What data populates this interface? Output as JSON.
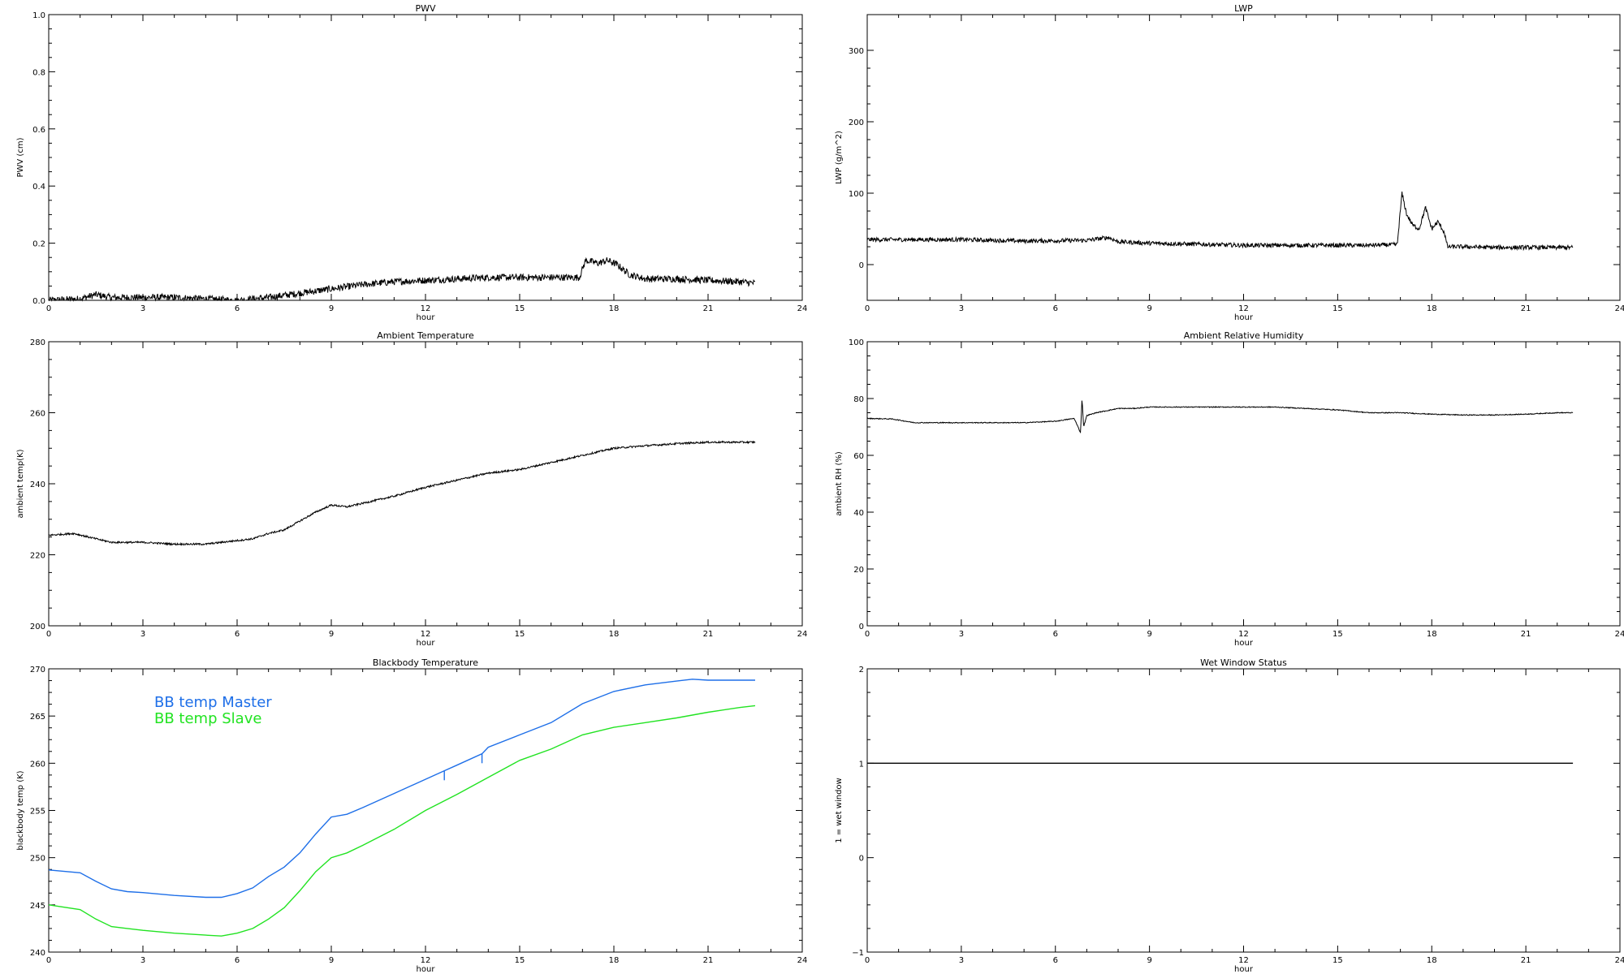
{
  "chart_data": [
    {
      "id": "pwv",
      "type": "line",
      "title": "PWV",
      "xlabel": "hour",
      "ylabel": "PWV (cm)",
      "xlim": [
        0,
        24
      ],
      "ylim": [
        0,
        1.0
      ],
      "xticks": [
        0,
        3,
        6,
        9,
        12,
        15,
        18,
        21,
        24
      ],
      "yticks": [
        0.0,
        0.2,
        0.4,
        0.6,
        0.8,
        1.0
      ],
      "xtick_labels": [
        "0",
        "3",
        "6",
        "9",
        "12",
        "15",
        "18",
        "21",
        "24"
      ],
      "ytick_labels": [
        "0.0",
        "0.2",
        "0.4",
        "0.6",
        "0.8",
        "1.0"
      ],
      "grid": false,
      "noise": 0.012,
      "series": [
        {
          "color": "#000000",
          "x": [
            0,
            1,
            1.5,
            2,
            3,
            4,
            5,
            6,
            7,
            8,
            9,
            10,
            11,
            12,
            13,
            14,
            15,
            16,
            16.9,
            17.1,
            17.5,
            17.8,
            18.1,
            18.5,
            19,
            20,
            21,
            22,
            22.5
          ],
          "y": [
            0.0,
            0.005,
            0.02,
            0.01,
            0.01,
            0.01,
            0.005,
            0.0,
            0.01,
            0.025,
            0.04,
            0.055,
            0.065,
            0.07,
            0.075,
            0.08,
            0.08,
            0.08,
            0.08,
            0.14,
            0.13,
            0.14,
            0.125,
            0.09,
            0.075,
            0.075,
            0.07,
            0.065,
            0.06
          ]
        }
      ]
    },
    {
      "id": "lwp",
      "type": "line",
      "title": "LWP",
      "xlabel": "hour",
      "ylabel": "LWP (g/m^2)",
      "xlim": [
        0,
        24
      ],
      "ylim": [
        -50,
        350
      ],
      "xticks": [
        0,
        3,
        6,
        9,
        12,
        15,
        18,
        21,
        24
      ],
      "yticks": [
        0,
        100,
        200,
        300
      ],
      "xtick_labels": [
        "0",
        "3",
        "6",
        "9",
        "12",
        "15",
        "18",
        "21",
        "24"
      ],
      "ytick_labels": [
        "0",
        "100",
        "200",
        "300"
      ],
      "grid": false,
      "noise": 3,
      "series": [
        {
          "color": "#000000",
          "x": [
            0,
            1,
            3,
            5,
            7,
            7.7,
            8,
            9,
            10,
            12,
            14,
            16,
            16.9,
            17.05,
            17.2,
            17.4,
            17.6,
            17.8,
            18.0,
            18.2,
            18.4,
            18.5,
            19,
            20,
            21,
            22,
            22.5
          ],
          "y": [
            35,
            35,
            35,
            33,
            34,
            38,
            32,
            30,
            29,
            27,
            27,
            27,
            28,
            100,
            70,
            55,
            50,
            80,
            50,
            60,
            45,
            25,
            25,
            24,
            24,
            24,
            24
          ]
        }
      ]
    },
    {
      "id": "ambient-temp",
      "type": "line",
      "title": "Ambient Temperature",
      "xlabel": "hour",
      "ylabel": "ambient temp(K)",
      "xlim": [
        0,
        24
      ],
      "ylim": [
        200,
        280
      ],
      "xticks": [
        0,
        3,
        6,
        9,
        12,
        15,
        18,
        21,
        24
      ],
      "yticks": [
        200,
        220,
        240,
        260,
        280
      ],
      "xtick_labels": [
        "0",
        "3",
        "6",
        "9",
        "12",
        "15",
        "18",
        "21",
        "24"
      ],
      "ytick_labels": [
        "200",
        "220",
        "240",
        "260",
        "280"
      ],
      "grid": false,
      "noise": 0.25,
      "series": [
        {
          "color": "#000000",
          "x": [
            0,
            0.8,
            1.5,
            2,
            3,
            4,
            5,
            6,
            6.5,
            7,
            7.5,
            8,
            8.5,
            9,
            9.5,
            10,
            10.5,
            11,
            12,
            13,
            14,
            15,
            16,
            17,
            18,
            19,
            20,
            21,
            22,
            22.5
          ],
          "y": [
            225.5,
            226,
            224.5,
            223.5,
            223.5,
            223,
            223,
            224,
            224.5,
            226,
            227,
            229.5,
            232,
            234,
            233.5,
            234.5,
            235.5,
            236.5,
            239,
            241,
            243,
            244,
            246,
            248,
            250,
            250.7,
            251.3,
            251.7,
            251.7,
            251.7
          ]
        }
      ]
    },
    {
      "id": "ambient-rh",
      "type": "line",
      "title": "Ambient Relative Humidity",
      "xlabel": "hour",
      "ylabel": "ambient RH (%)",
      "xlim": [
        0,
        24
      ],
      "ylim": [
        0,
        100
      ],
      "xticks": [
        0,
        3,
        6,
        9,
        12,
        15,
        18,
        21,
        24
      ],
      "yticks": [
        0,
        20,
        40,
        60,
        80,
        100
      ],
      "xtick_labels": [
        "0",
        "3",
        "6",
        "9",
        "12",
        "15",
        "18",
        "21",
        "24"
      ],
      "ytick_labels": [
        "0",
        "20",
        "40",
        "60",
        "80",
        "100"
      ],
      "grid": false,
      "noise": 0.15,
      "series": [
        {
          "color": "#000000",
          "x": [
            0,
            0.8,
            1.5,
            2,
            3,
            4,
            5,
            6,
            6.6,
            6.8,
            6.85,
            6.9,
            7.0,
            7.3,
            8,
            8.5,
            9,
            10,
            11,
            12,
            13,
            14,
            15,
            16,
            17,
            18,
            19,
            20,
            21,
            22,
            22.5
          ],
          "y": [
            73,
            72.8,
            71.5,
            71.5,
            71.5,
            71.5,
            71.5,
            72,
            73,
            68,
            80,
            70,
            74,
            75,
            76.5,
            76.5,
            77,
            77,
            77,
            77,
            77,
            76.5,
            76,
            75,
            75,
            74.5,
            74.2,
            74.2,
            74.5,
            75,
            75
          ]
        }
      ]
    },
    {
      "id": "blackbody-temp",
      "type": "line",
      "title": "Blackbody Temperature",
      "xlabel": "hour",
      "ylabel": "blackbody temp (K)",
      "xlim": [
        0,
        24
      ],
      "ylim": [
        240,
        270
      ],
      "xticks": [
        0,
        3,
        6,
        9,
        12,
        15,
        18,
        21,
        24
      ],
      "yticks": [
        240,
        245,
        250,
        255,
        260,
        265,
        270
      ],
      "xtick_labels": [
        "0",
        "3",
        "6",
        "9",
        "12",
        "15",
        "18",
        "21",
        "24"
      ],
      "ytick_labels": [
        "240",
        "245",
        "250",
        "255",
        "260",
        "265",
        "270"
      ],
      "grid": false,
      "noise": 0,
      "legend": {
        "position": "upper-left",
        "entries": [
          {
            "label": "BB temp Master",
            "color": "#1e6fe8"
          },
          {
            "label": "BB temp Slave",
            "color": "#22e322"
          }
        ]
      },
      "series": [
        {
          "name": "BB temp Master",
          "color": "#1e6fe8",
          "x": [
            0,
            1,
            1.5,
            2,
            2.5,
            3,
            4,
            5,
            5.5,
            6,
            6.5,
            7,
            7.5,
            8,
            8.5,
            9,
            9.5,
            10,
            11,
            12,
            12.6,
            13,
            13.8,
            14,
            15,
            16,
            17,
            18,
            19,
            20,
            20.5,
            21,
            22,
            22.5
          ],
          "y": [
            248.7,
            248.4,
            247.5,
            246.7,
            246.4,
            246.3,
            246,
            245.8,
            245.8,
            246.2,
            246.8,
            248,
            249,
            250.5,
            252.5,
            254.3,
            254.6,
            255.3,
            256.8,
            258.3,
            259.2,
            259.8,
            261.0,
            261.7,
            263.0,
            264.3,
            266.3,
            267.6,
            268.3,
            268.7,
            268.9,
            268.8,
            268.8,
            268.8
          ]
        },
        {
          "name": "BB temp Slave",
          "color": "#22e322",
          "x": [
            0,
            1,
            1.5,
            2,
            2.5,
            3,
            4,
            5,
            5.5,
            6,
            6.5,
            7,
            7.5,
            8,
            8.5,
            9,
            9.5,
            10,
            11,
            12,
            13,
            14,
            15,
            16,
            17,
            18,
            19,
            20,
            21,
            22,
            22.5
          ],
          "y": [
            245.0,
            244.5,
            243.5,
            242.7,
            242.5,
            242.3,
            242.0,
            241.8,
            241.7,
            242.0,
            242.5,
            243.5,
            244.7,
            246.5,
            248.5,
            250.0,
            250.5,
            251.3,
            253.0,
            255.0,
            256.7,
            258.5,
            260.3,
            261.5,
            263.0,
            263.8,
            264.3,
            264.8,
            265.4,
            265.9,
            266.1
          ]
        },
        {
          "name": "",
          "color": "#1e6fe8",
          "x": [
            12.6,
            12.6
          ],
          "y": [
            259.2,
            258.2
          ]
        },
        {
          "name": "",
          "color": "#1e6fe8",
          "x": [
            13.8,
            13.8
          ],
          "y": [
            261.0,
            260.0
          ]
        }
      ]
    },
    {
      "id": "wet-window",
      "type": "line",
      "title": "Wet Window Status",
      "xlabel": "hour",
      "ylabel": "1 = wet window",
      "xlim": [
        0,
        24
      ],
      "ylim": [
        -1,
        2
      ],
      "xticks": [
        0,
        3,
        6,
        9,
        12,
        15,
        18,
        21,
        24
      ],
      "yticks": [
        -1,
        0,
        1,
        2
      ],
      "xtick_labels": [
        "0",
        "3",
        "6",
        "9",
        "12",
        "15",
        "18",
        "21",
        "24"
      ],
      "ytick_labels": [
        "−1",
        "0",
        "1",
        "2"
      ],
      "grid": false,
      "noise": 0,
      "series": [
        {
          "color": "#000000",
          "x": [
            0,
            22.5
          ],
          "y": [
            1,
            1
          ]
        }
      ]
    }
  ]
}
